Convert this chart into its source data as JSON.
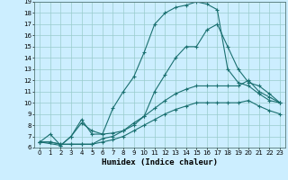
{
  "xlabel": "Humidex (Indice chaleur)",
  "bg_color": "#cceeff",
  "grid_color": "#99cccc",
  "line_color": "#1a7070",
  "ylim": [
    6,
    19
  ],
  "xlim": [
    -0.5,
    23.5
  ],
  "yticks": [
    6,
    7,
    8,
    9,
    10,
    11,
    12,
    13,
    14,
    15,
    16,
    17,
    18,
    19
  ],
  "xticks": [
    0,
    1,
    2,
    3,
    4,
    5,
    6,
    7,
    8,
    9,
    10,
    11,
    12,
    13,
    14,
    15,
    16,
    17,
    18,
    19,
    20,
    21,
    22,
    23
  ],
  "line1_x": [
    0,
    1,
    2,
    3,
    4,
    5,
    6,
    7,
    8,
    9,
    10,
    11,
    12,
    13,
    14,
    15,
    16,
    17,
    18,
    19,
    20,
    21,
    22,
    23
  ],
  "line1_y": [
    6.5,
    7.2,
    6.2,
    7.0,
    8.2,
    7.5,
    7.2,
    9.5,
    11.0,
    12.3,
    14.5,
    17.0,
    18.0,
    18.5,
    18.7,
    19.0,
    18.8,
    18.3,
    13.0,
    11.8,
    11.5,
    10.8,
    10.2,
    10.0
  ],
  "line2_x": [
    0,
    2,
    3,
    4,
    5,
    6,
    7,
    8,
    9,
    10,
    11,
    12,
    13,
    14,
    15,
    16,
    17,
    18,
    19,
    20,
    21,
    22,
    23
  ],
  "line2_y": [
    6.5,
    6.2,
    7.0,
    8.5,
    7.2,
    7.2,
    7.3,
    7.5,
    8.0,
    8.8,
    11.0,
    12.5,
    14.0,
    15.0,
    15.0,
    16.5,
    17.0,
    15.0,
    13.0,
    11.8,
    11.5,
    10.8,
    10.0
  ],
  "line3_x": [
    0,
    1,
    2,
    3,
    4,
    5,
    6,
    7,
    8,
    9,
    10,
    11,
    12,
    13,
    14,
    15,
    16,
    17,
    18,
    19,
    20,
    21,
    22,
    23
  ],
  "line3_y": [
    6.5,
    6.5,
    6.3,
    6.3,
    6.3,
    6.3,
    6.8,
    7.0,
    7.5,
    8.2,
    8.8,
    9.5,
    10.2,
    10.8,
    11.2,
    11.5,
    11.5,
    11.5,
    11.5,
    11.5,
    12.0,
    11.0,
    10.5,
    10.0
  ],
  "line4_x": [
    0,
    1,
    2,
    3,
    4,
    5,
    6,
    7,
    8,
    9,
    10,
    11,
    12,
    13,
    14,
    15,
    16,
    17,
    18,
    19,
    20,
    21,
    22,
    23
  ],
  "line4_y": [
    6.5,
    6.5,
    6.3,
    6.3,
    6.3,
    6.3,
    6.5,
    6.7,
    7.0,
    7.5,
    8.0,
    8.5,
    9.0,
    9.4,
    9.7,
    10.0,
    10.0,
    10.0,
    10.0,
    10.0,
    10.2,
    9.7,
    9.3,
    9.0
  ],
  "marker": "+",
  "markersize": 3,
  "linewidth": 0.8,
  "tick_fontsize": 5,
  "xlabel_fontsize": 6.5
}
